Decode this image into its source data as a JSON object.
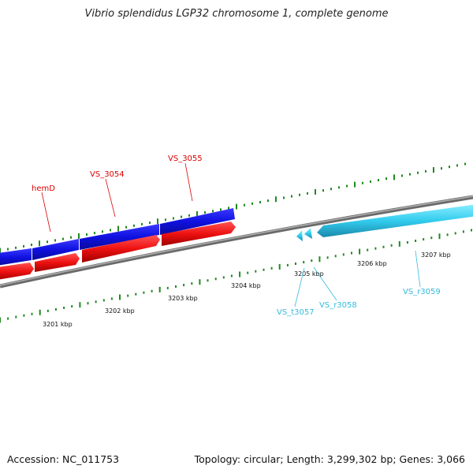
{
  "title": "Vibrio splendidus LGP32 chromosome 1, complete genome",
  "footer": {
    "accession": "Accession: NC_011753",
    "summary": "Topology: circular; Length: 3,299,302 bp; Genes: 3,066"
  },
  "colors": {
    "forward_cds": "#1010e0",
    "reverse_cds": "#ee1111",
    "rna": "#33ccee",
    "backbone": "#888888",
    "tick": "#228822",
    "forward_label": "#dd0000",
    "rna_label": "#33bbdd"
  },
  "scale_labels": [
    "3201 kbp",
    "3202 kbp",
    "3203 kbp",
    "3204 kbp",
    "3205 kbp",
    "3206 kbp",
    "3207 kbp"
  ],
  "gene_labels": [
    {
      "text": "hemD",
      "group": "forward"
    },
    {
      "text": "VS_3054",
      "group": "forward"
    },
    {
      "text": "VS_3055",
      "group": "forward"
    },
    {
      "text": "VS_t3057",
      "group": "rna"
    },
    {
      "text": "VS_r3058",
      "group": "rna"
    },
    {
      "text": "VS_r3059",
      "group": "rna"
    }
  ]
}
